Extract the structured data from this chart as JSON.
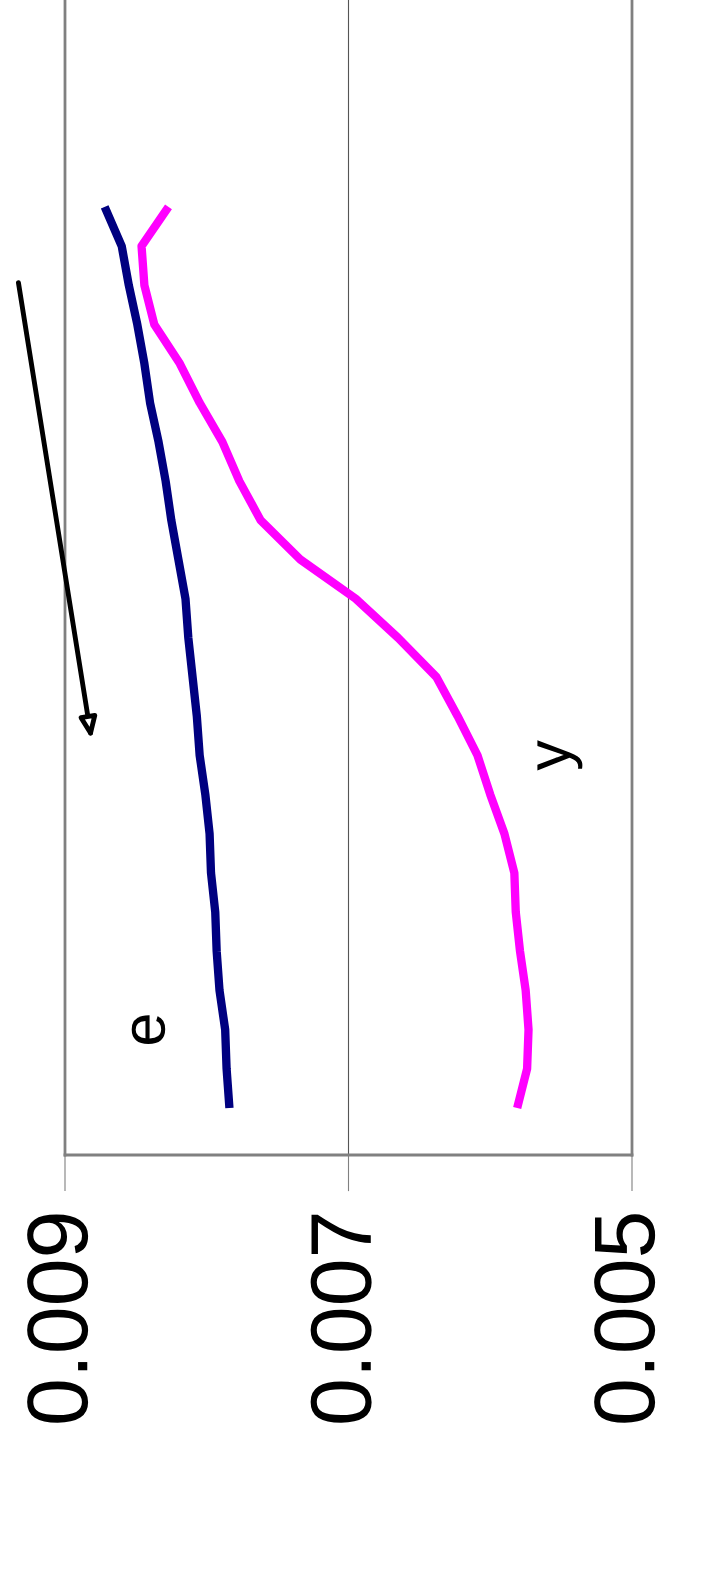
{
  "chart_data": {
    "type": "line",
    "orientation": "horizontal",
    "categories": [
      null,
      null,
      null,
      null,
      null,
      null,
      null,
      null,
      null,
      null,
      null,
      null,
      null,
      null,
      null,
      null,
      null,
      null,
      null,
      null,
      null,
      null,
      null,
      null
    ],
    "series": [
      {
        "name": "e",
        "color": "#000080",
        "values": [
          0.00872,
          0.0086,
          0.00855,
          0.00849,
          0.00844,
          0.0084,
          0.00834,
          0.00829,
          0.00825,
          0.0082,
          0.00815,
          0.00813,
          0.0081,
          0.00807,
          0.00805,
          0.00801,
          0.00798,
          0.00797,
          0.00794,
          0.00793,
          0.00791,
          0.00787,
          0.00786,
          0.00784
        ]
      },
      {
        "name": "y",
        "color": "#ff00ff",
        "values": [
          0.00827,
          0.00846,
          0.00844,
          0.00837,
          0.00819,
          0.00805,
          0.00789,
          0.00777,
          0.00762,
          0.00734,
          0.00695,
          0.00665,
          0.00638,
          0.00623,
          0.00609,
          0.006,
          0.0059,
          0.00583,
          0.00582,
          0.00579,
          0.00575,
          0.00573,
          0.00574,
          0.00581
        ]
      }
    ],
    "xlim": [
      0.009,
      0.005
    ],
    "xticks": [
      0.009,
      0.007,
      0.005
    ],
    "grid": "x",
    "legend": false
  }
}
